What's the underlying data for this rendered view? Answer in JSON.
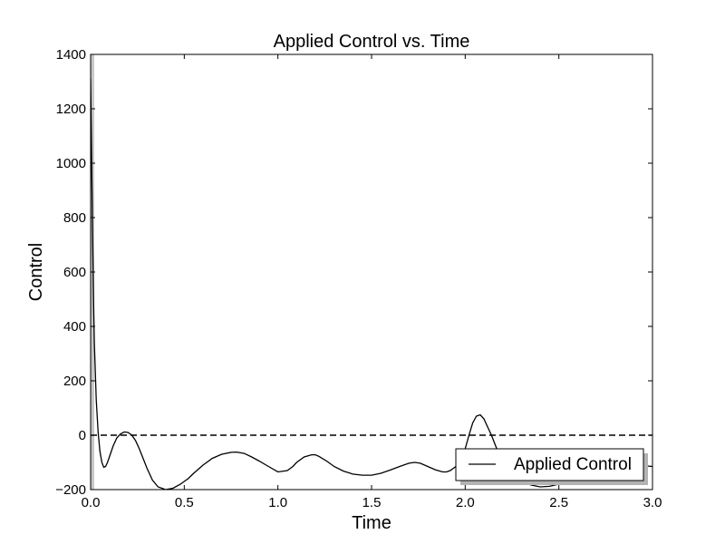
{
  "chart_data": {
    "type": "line",
    "title": "Applied Control vs. Time",
    "xlabel": "Time",
    "ylabel": "Control",
    "xlim": [
      0,
      3.0
    ],
    "ylim": [
      -200,
      1400
    ],
    "xticks": [
      "0.0",
      "0.5",
      "1.0",
      "1.5",
      "2.0",
      "2.5",
      "3.0"
    ],
    "yticks": [
      "−200",
      "0",
      "200",
      "400",
      "600",
      "800",
      "1000",
      "1200",
      "1400"
    ],
    "grid": false,
    "legend": {
      "position": "bottom-right",
      "entries": [
        "Applied Control"
      ]
    },
    "reference_line": {
      "y": 0,
      "style": "dashed"
    },
    "series": [
      {
        "name": "Applied Control",
        "color": "#000000",
        "x": [
          0.0,
          0.005,
          0.01,
          0.015,
          0.02,
          0.03,
          0.04,
          0.05,
          0.06,
          0.07,
          0.08,
          0.09,
          0.1,
          0.12,
          0.14,
          0.16,
          0.18,
          0.2,
          0.22,
          0.24,
          0.26,
          0.28,
          0.3,
          0.33,
          0.36,
          0.4,
          0.44,
          0.48,
          0.5,
          0.52,
          0.55,
          0.6,
          0.65,
          0.7,
          0.75,
          0.78,
          0.82,
          0.86,
          0.9,
          0.95,
          1.0,
          1.05,
          1.08,
          1.1,
          1.14,
          1.18,
          1.2,
          1.22,
          1.26,
          1.3,
          1.35,
          1.4,
          1.45,
          1.5,
          1.55,
          1.6,
          1.65,
          1.7,
          1.73,
          1.76,
          1.8,
          1.84,
          1.88,
          1.9,
          1.92,
          1.95,
          1.98,
          2.0,
          2.02,
          2.04,
          2.06,
          2.08,
          2.1,
          2.12,
          2.14,
          2.16,
          2.18,
          2.2,
          2.22,
          2.25,
          2.3,
          2.35,
          2.4,
          2.45,
          2.5,
          2.55,
          2.6,
          2.65,
          2.7,
          2.75,
          2.8,
          2.85,
          2.9,
          2.95,
          3.0
        ],
        "values": [
          1310,
          1050,
          760,
          520,
          340,
          130,
          10,
          -60,
          -100,
          -118,
          -115,
          -100,
          -80,
          -40,
          -10,
          5,
          12,
          10,
          0,
          -20,
          -50,
          -85,
          -120,
          -165,
          -190,
          -200,
          -195,
          -180,
          -170,
          -160,
          -140,
          -110,
          -85,
          -70,
          -63,
          -62,
          -67,
          -80,
          -95,
          -115,
          -135,
          -130,
          -115,
          -100,
          -80,
          -72,
          -72,
          -78,
          -95,
          -115,
          -132,
          -143,
          -147,
          -147,
          -140,
          -128,
          -115,
          -103,
          -100,
          -103,
          -115,
          -127,
          -135,
          -135,
          -130,
          -115,
          -85,
          -50,
          0,
          45,
          70,
          75,
          60,
          30,
          0,
          -35,
          -70,
          -100,
          -125,
          -150,
          -170,
          -183,
          -190,
          -188,
          -180,
          -170,
          -160,
          -150,
          -140,
          -130,
          -120,
          -112,
          -110,
          -112,
          -115
        ]
      }
    ]
  }
}
